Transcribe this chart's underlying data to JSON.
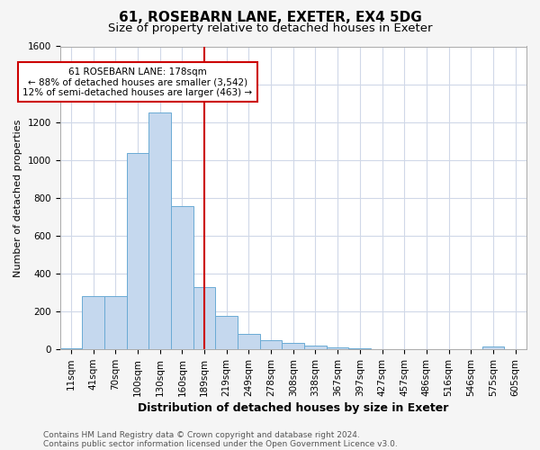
{
  "title": "61, ROSEBARN LANE, EXETER, EX4 5DG",
  "subtitle": "Size of property relative to detached houses in Exeter",
  "xlabel": "Distribution of detached houses by size in Exeter",
  "ylabel": "Number of detached properties",
  "categories": [
    "11sqm",
    "41sqm",
    "70sqm",
    "100sqm",
    "130sqm",
    "160sqm",
    "189sqm",
    "219sqm",
    "249sqm",
    "278sqm",
    "308sqm",
    "338sqm",
    "367sqm",
    "397sqm",
    "427sqm",
    "457sqm",
    "486sqm",
    "516sqm",
    "546sqm",
    "575sqm",
    "605sqm"
  ],
  "values": [
    5,
    280,
    280,
    1035,
    1250,
    755,
    330,
    175,
    82,
    48,
    35,
    20,
    10,
    5,
    0,
    0,
    0,
    0,
    0,
    13,
    0
  ],
  "bar_color": "#c5d8ee",
  "bar_edge_color": "#6aaad4",
  "red_line_x": 6.0,
  "red_line_color": "#cc0000",
  "annotation_text": "61 ROSEBARN LANE: 178sqm\n← 88% of detached houses are smaller (3,542)\n12% of semi-detached houses are larger (463) →",
  "annotation_box_color": "#ffffff",
  "annotation_box_edge": "#cc0000",
  "ylim": [
    0,
    1600
  ],
  "yticks": [
    0,
    200,
    400,
    600,
    800,
    1000,
    1200,
    1400,
    1600
  ],
  "footer1": "Contains HM Land Registry data © Crown copyright and database right 2024.",
  "footer2": "Contains public sector information licensed under the Open Government Licence v3.0.",
  "background_color": "#f5f5f5",
  "plot_bg_color": "#ffffff",
  "grid_color": "#d0d8e8",
  "title_fontsize": 11,
  "subtitle_fontsize": 9.5,
  "xlabel_fontsize": 9,
  "ylabel_fontsize": 8,
  "tick_fontsize": 7.5,
  "footer_fontsize": 6.5
}
